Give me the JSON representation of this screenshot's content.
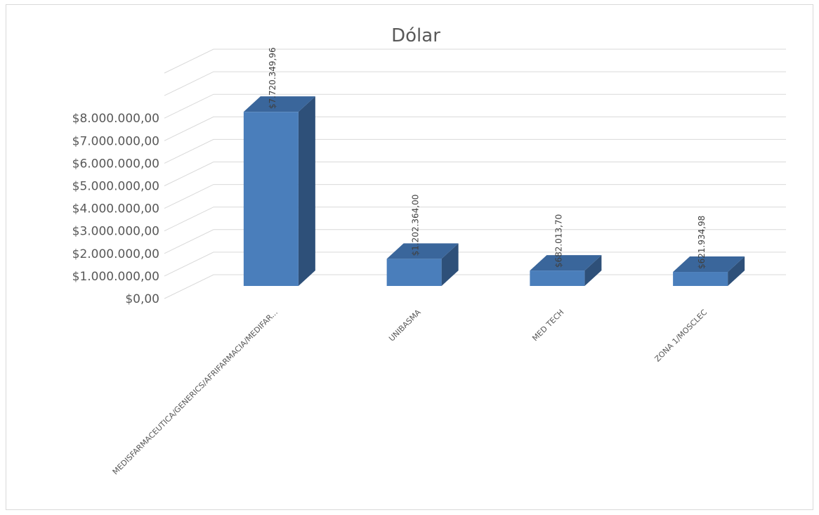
{
  "chart_data": {
    "type": "bar",
    "title": "Dólar",
    "categories": [
      "MEDISFARMACEUTICA/GENERICS/AFRIFARMACIA/MEDIFAR...",
      "UNIBASMA",
      "MED TECH",
      "ZONA 1/MOSCLEC"
    ],
    "values": [
      7720349.96,
      1202364.0,
      682013.7,
      621934.98
    ],
    "data_labels": [
      "$7.720.349,96",
      "$1.202.364,00",
      "$682.013,70",
      "$621.934,98"
    ],
    "ylim": [
      0,
      8000000
    ],
    "y_ticks": [
      "$0,00",
      "$1.000.000,00",
      "$2.000.000,00",
      "$3.000.000,00",
      "$4.000.000,00",
      "$5.000.000,00",
      "$6.000.000,00",
      "$7.000.000,00",
      "$8.000.000,00"
    ],
    "grid": true,
    "style": "3d-column",
    "colors": {
      "front": "#4a7ebb",
      "top": "#3a669b",
      "side": "#2e5079",
      "grid": "#d9d9d9",
      "text": "#595959"
    }
  }
}
